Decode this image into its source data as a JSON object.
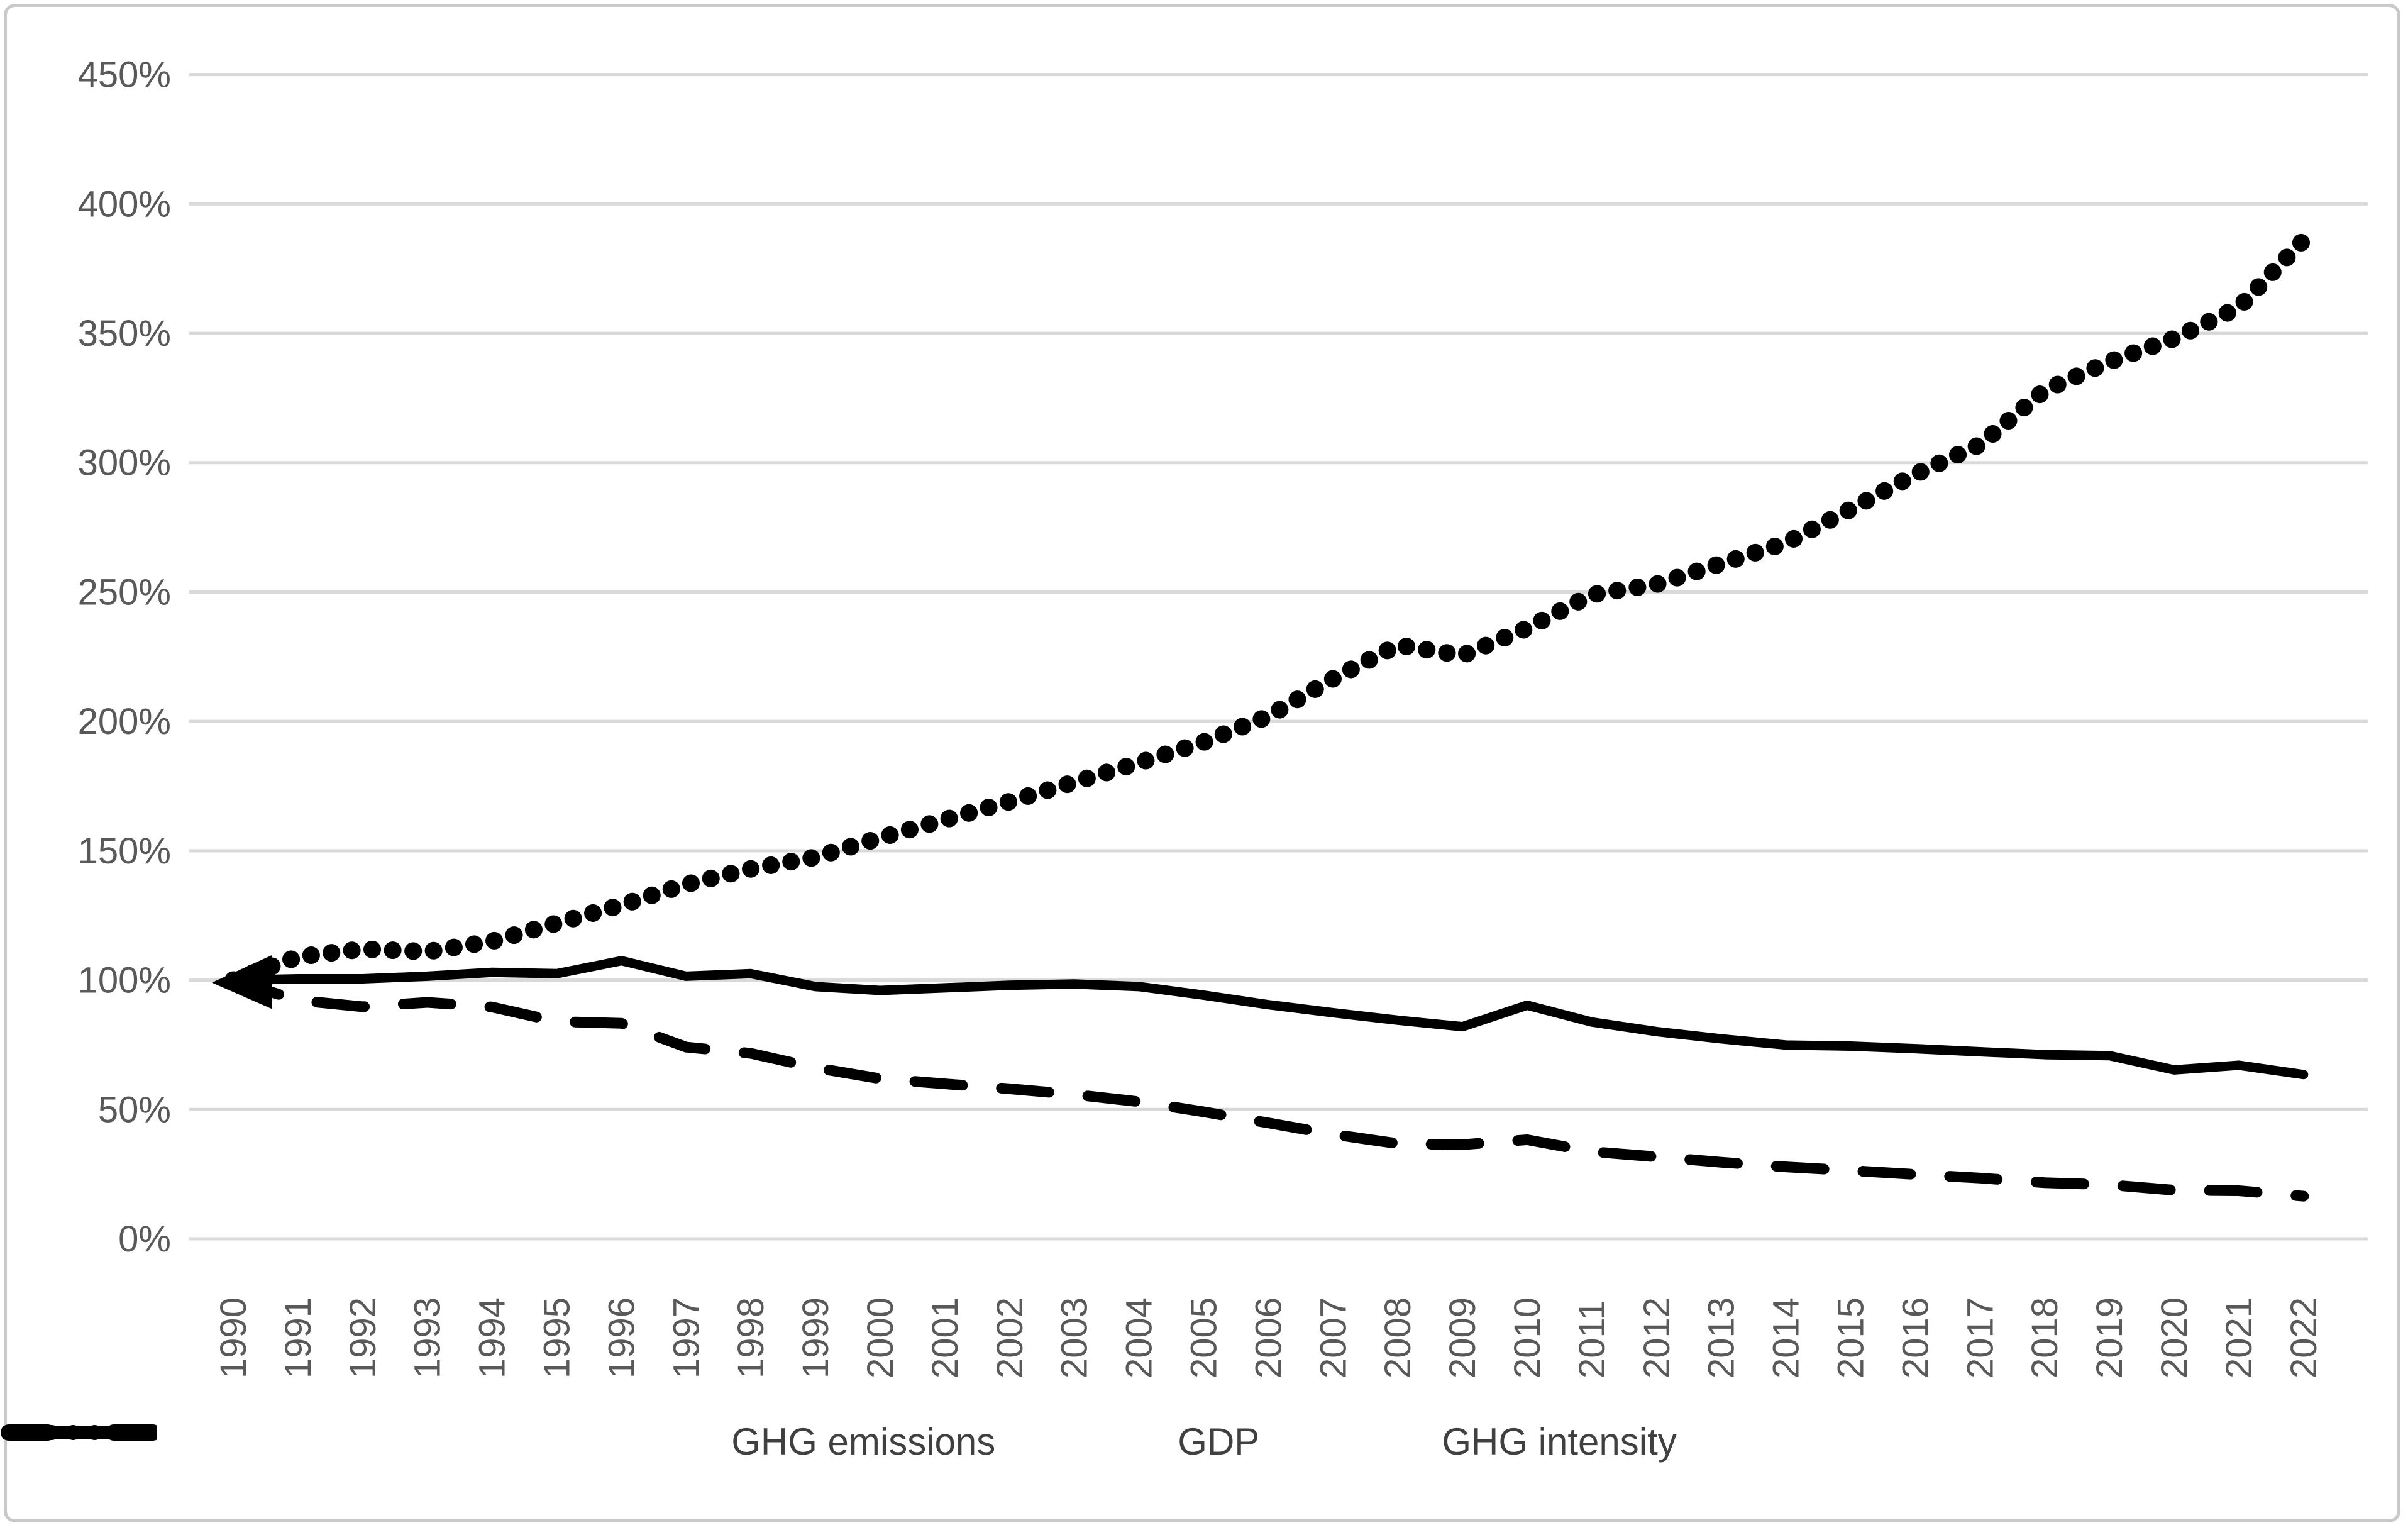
{
  "chart_data": {
    "type": "line",
    "title": "",
    "xlabel": "",
    "ylabel": "",
    "x": [
      1990,
      1991,
      1992,
      1993,
      1994,
      1995,
      1996,
      1997,
      1998,
      1999,
      2000,
      2001,
      2002,
      2003,
      2004,
      2005,
      2006,
      2007,
      2008,
      2009,
      2010,
      2011,
      2012,
      2013,
      2014,
      2015,
      2016,
      2017,
      2018,
      2019,
      2020,
      2021,
      2022
    ],
    "series": [
      {
        "name": "GHG emissions",
        "line_style": "solid",
        "color": "#000000",
        "start_arrow": true,
        "values": [
          100,
          100.5,
          100.5,
          101.5,
          103,
          102.5,
          107.5,
          101.5,
          102.5,
          97.5,
          96,
          97,
          98,
          98.5,
          97.5,
          94.2,
          90.5,
          87.4,
          84.5,
          82,
          90.3,
          83.8,
          80.1,
          77.3,
          74.9,
          74.5,
          73.5,
          72.3,
          71.2,
          70.8,
          65.3,
          67.1,
          63.5
        ]
      },
      {
        "name": "GDP",
        "line_style": "dotted",
        "color": "#000000",
        "start_arrow": false,
        "values": [
          100,
          109,
          112,
          111,
          115,
          122,
          129,
          137,
          143,
          147.5,
          155,
          162,
          169,
          176.5,
          184,
          192,
          202,
          216.5,
          229.5,
          225.5,
          236,
          249,
          253,
          261,
          269,
          282,
          295.5,
          307,
          328,
          339,
          348,
          360,
          386
        ]
      },
      {
        "name": "GHG intensity",
        "line_style": "dashed",
        "color": "#000000",
        "start_arrow": false,
        "values": [
          100,
          92.2,
          89.7,
          91.4,
          89.6,
          84,
          83.3,
          74.1,
          71.7,
          66.1,
          61.9,
          59.9,
          58,
          55.8,
          53,
          49.1,
          44.8,
          40.4,
          36.8,
          36.4,
          38.3,
          33.7,
          31.7,
          29.6,
          27.8,
          26.4,
          24.9,
          23.5,
          21.7,
          20.9,
          18.8,
          18.6,
          16.5
        ]
      }
    ],
    "ylim": [
      0,
      450
    ],
    "ytick_step": 50,
    "ytick_suffix": "%",
    "grid": "horizontal",
    "gridline_color": "#d9d9d9",
    "tick_label_color": "#595959",
    "legend_position": "bottom"
  },
  "legend": {
    "items": [
      {
        "label": "GHG emissions",
        "line_style": "solid"
      },
      {
        "label": "GDP",
        "line_style": "dotted"
      },
      {
        "label": "GHG intensity",
        "line_style": "dashed"
      }
    ]
  }
}
